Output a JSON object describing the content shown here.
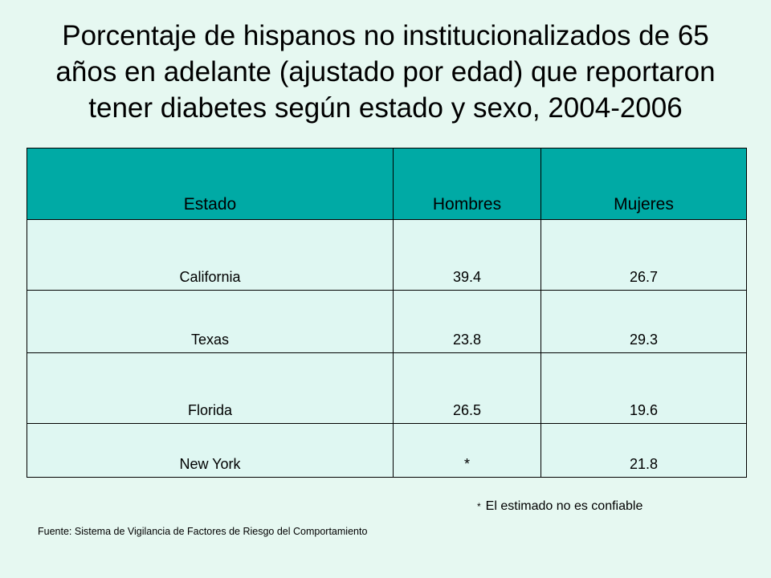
{
  "title": {
    "line1": "Porcentaje de hispanos no institucionalizados de 65",
    "line2": "años en adelante (ajustado por edad) que reportaron",
    "line3": "tener diabetes según estado y sexo, 2004-2006"
  },
  "table": {
    "headers": [
      "Estado",
      "Hombres",
      "Mujeres"
    ],
    "rows": [
      [
        "California",
        "39.4",
        "26.7"
      ],
      [
        "Texas",
        "23.8",
        "29.3"
      ],
      [
        "Florida",
        "26.5",
        "19.6"
      ],
      [
        "New York",
        "*",
        "21.8"
      ]
    ]
  },
  "note": {
    "symbol": "*",
    "text": "El estimado no es confiable"
  },
  "source": "Fuente: Sistema de Vigilancia de Factores de Riesgo del Comportamiento",
  "colors": {
    "background": "#e6f8f1",
    "header": "#00aaa5",
    "cell": "#dff7f2"
  }
}
